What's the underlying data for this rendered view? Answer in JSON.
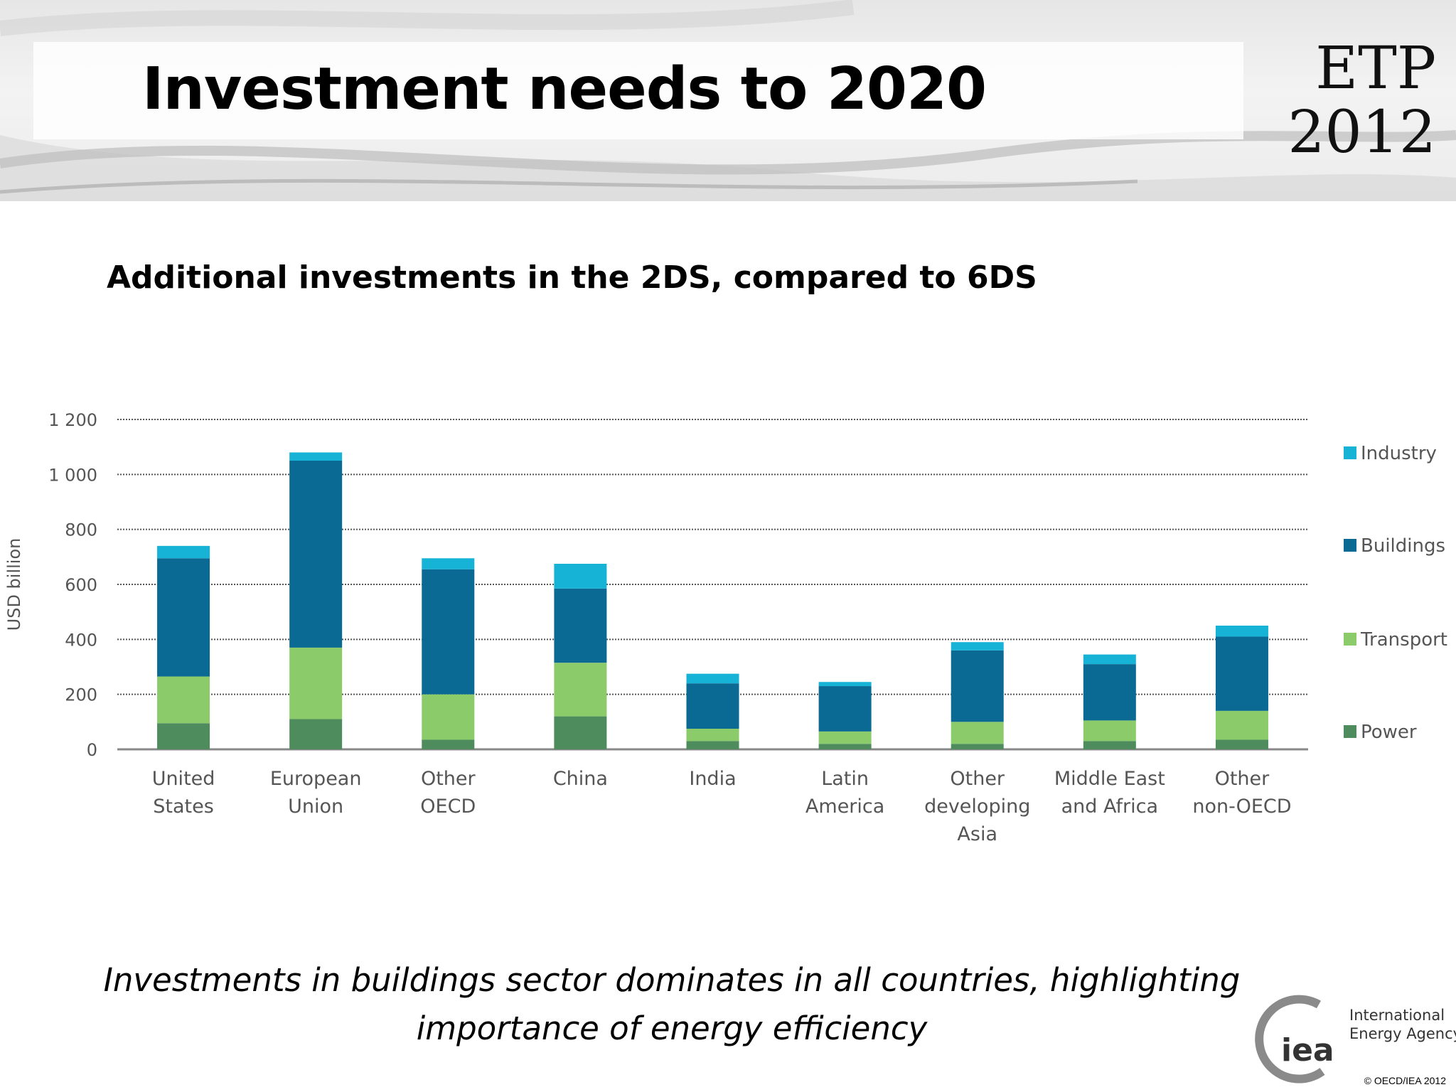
{
  "slide": {
    "title": "Investment needs to 2020",
    "badge_line1": "ETP",
    "badge_line2": "2012",
    "subtitle": "Additional investments in the 2DS, compared to 6DS",
    "caption_line1": "Investments in buildings sector dominates in all countries, highlighting",
    "caption_line2": "importance of energy efficiency",
    "logo_mark": "iea",
    "logo_org_line1": "International",
    "logo_org_line2": "Energy Agency",
    "copyright": "© OECD/IEA 2012"
  },
  "chart_data": {
    "type": "bar",
    "stacked": true,
    "ylabel": "USD billion",
    "ylim": [
      0,
      1200
    ],
    "yticks": [
      0,
      200,
      400,
      600,
      800,
      1000,
      1200
    ],
    "ytick_labels": [
      "0",
      "200",
      "400",
      "600",
      "800",
      "1 000",
      "1 200"
    ],
    "grid": true,
    "legend_position": "right",
    "categories": [
      [
        "United",
        "States"
      ],
      [
        "European",
        "Union"
      ],
      [
        "Other",
        "OECD"
      ],
      [
        "China"
      ],
      [
        "India"
      ],
      [
        "Latin",
        "America"
      ],
      [
        "Other",
        "developing",
        "Asia"
      ],
      [
        "Middle East",
        "and Africa"
      ],
      [
        "Other",
        "non-OECD"
      ]
    ],
    "series": [
      {
        "name": "Power",
        "color": "#4e8c5e",
        "values": [
          95,
          110,
          35,
          120,
          30,
          20,
          20,
          30,
          35
        ]
      },
      {
        "name": "Transport",
        "color": "#8ccb6a",
        "values": [
          170,
          260,
          165,
          195,
          45,
          45,
          80,
          75,
          105
        ]
      },
      {
        "name": "Buildings",
        "color": "#0b6a93",
        "values": [
          430,
          680,
          455,
          270,
          165,
          165,
          260,
          205,
          270
        ]
      },
      {
        "name": "Industry",
        "color": "#17b3d6",
        "values": [
          45,
          30,
          40,
          90,
          35,
          15,
          30,
          35,
          40
        ]
      }
    ],
    "legend_order": [
      "Industry",
      "Buildings",
      "Transport",
      "Power"
    ]
  }
}
